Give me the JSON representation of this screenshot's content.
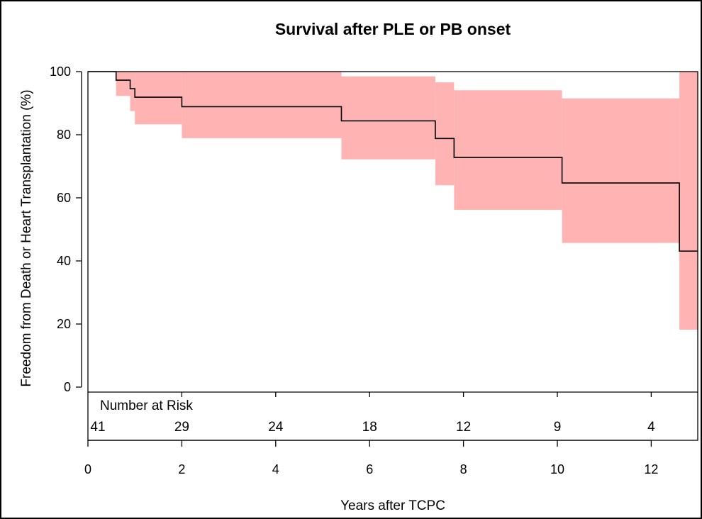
{
  "chart_data": {
    "type": "line",
    "title": "Survival after PLE or PB onset",
    "xlabel": "Years after TCPC",
    "ylabel": "Freedom from Death or Heart Transplantation (%)",
    "xlim": [
      0,
      13
    ],
    "ylim": [
      0,
      100
    ],
    "x_ticks": [
      0,
      2,
      4,
      6,
      8,
      10,
      12
    ],
    "y_ticks": [
      0,
      20,
      40,
      60,
      80,
      100
    ],
    "grid": false,
    "curve_color": "#000000",
    "band_color": "#ffb3b3",
    "series": [
      {
        "steps": [
          {
            "x": 0.0,
            "y": 100.0,
            "lower": 100.0,
            "upper": 100.0
          },
          {
            "x": 0.6,
            "y": 97.3,
            "lower": 92.3,
            "upper": 100.0
          },
          {
            "x": 0.9,
            "y": 94.6,
            "lower": 87.5,
            "upper": 100.0
          },
          {
            "x": 1.0,
            "y": 91.9,
            "lower": 83.3,
            "upper": 100.0
          },
          {
            "x": 2.0,
            "y": 88.9,
            "lower": 78.9,
            "upper": 100.0
          },
          {
            "x": 5.4,
            "y": 84.4,
            "lower": 72.2,
            "upper": 98.5
          },
          {
            "x": 7.4,
            "y": 78.8,
            "lower": 64.0,
            "upper": 96.6
          },
          {
            "x": 7.8,
            "y": 72.8,
            "lower": 56.2,
            "upper": 94.1
          },
          {
            "x": 10.1,
            "y": 64.7,
            "lower": 45.7,
            "upper": 91.5
          },
          {
            "x": 12.6,
            "y": 43.1,
            "lower": 18.2,
            "upper": 100.0
          }
        ],
        "x_end": 13.0
      }
    ],
    "risk_table": {
      "label": "Number at Risk",
      "values": [
        {
          "x": 0,
          "n": "41"
        },
        {
          "x": 2,
          "n": "29"
        },
        {
          "x": 4,
          "n": "24"
        },
        {
          "x": 6,
          "n": "18"
        },
        {
          "x": 8,
          "n": "12"
        },
        {
          "x": 10,
          "n": "9"
        },
        {
          "x": 12,
          "n": "4"
        }
      ]
    }
  }
}
